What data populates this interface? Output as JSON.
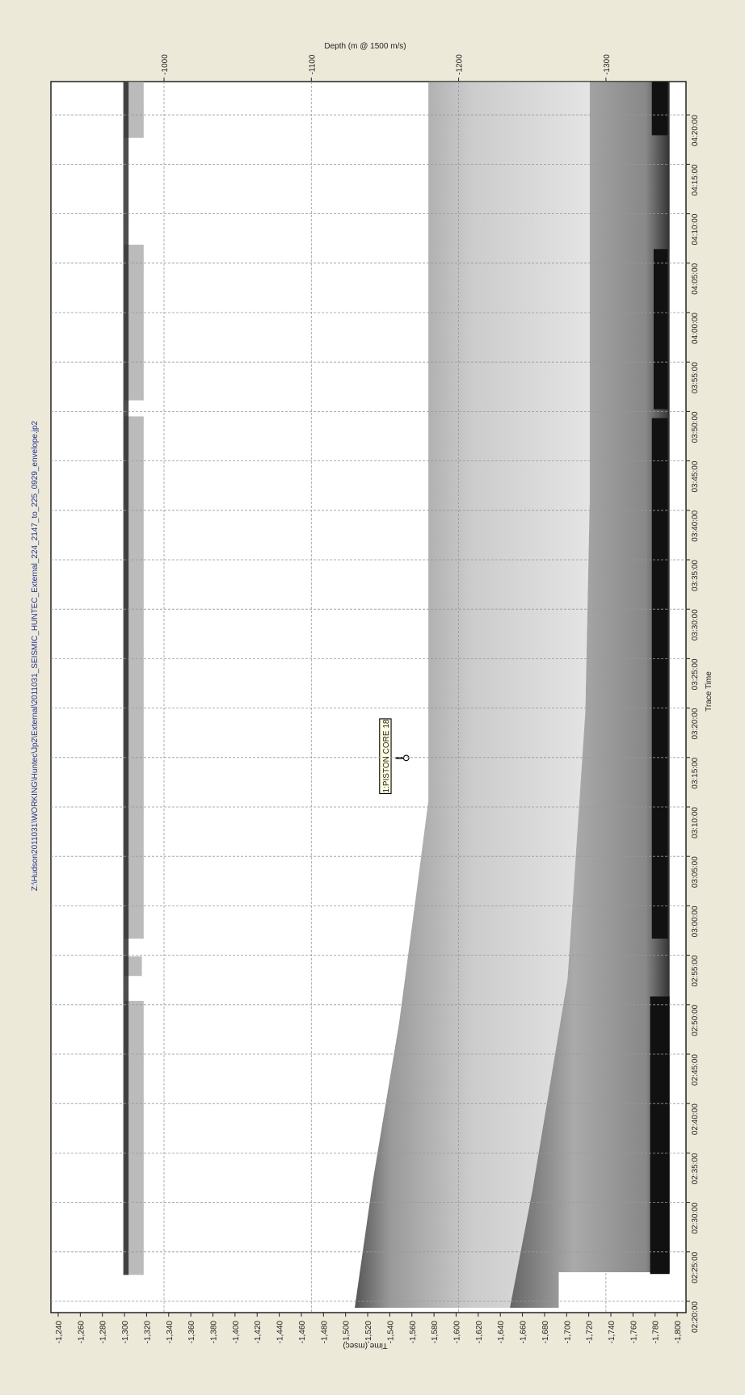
{
  "header": {
    "title": "Z:\\Hudson2011031\\WORKING\\Huntec\\Jp2\\External\\2011031_SEISMIC_HUNTEC_External_224_2147_to_225_0929_envelope.jp2"
  },
  "top_axis": {
    "label": "Depth (m @ 1500 m/s)",
    "ticks": [
      "-1000",
      "-1100",
      "-1200",
      "-1300"
    ]
  },
  "time_axis": {
    "label": "Time (msec)",
    "ticks": [
      "-1,240",
      "-1,260",
      "-1,280",
      "-1,300",
      "-1,320",
      "-1,340",
      "-1,360",
      "-1,380",
      "-1,400",
      "-1,420",
      "-1,440",
      "-1,460",
      "-1,480",
      "-1,500",
      "-1,520",
      "-1,540",
      "-1,560",
      "-1,580",
      "-1,600",
      "-1,620",
      "-1,640",
      "-1,660",
      "-1,680",
      "-1,700",
      "-1,720",
      "-1,740",
      "-1,760",
      "-1,780",
      "-1,800"
    ]
  },
  "trace_axis": {
    "label": "Trace Time",
    "ticks": [
      "02:20:00",
      "02:25:00",
      "02:30:00",
      "02:35:00",
      "02:40:00",
      "02:45:00",
      "02:50:00",
      "02:55:00",
      "03:00:00",
      "03:05:00",
      "03:10:00",
      "03:15:00",
      "03:20:00",
      "03:25:00",
      "03:30:00",
      "03:35:00",
      "03:40:00",
      "03:45:00",
      "03:50:00",
      "03:55:00",
      "04:00:00",
      "04:05:00",
      "04:10:00",
      "04:15:00",
      "04:20:00"
    ]
  },
  "annotation": "1:PISTON CORE 18"
}
